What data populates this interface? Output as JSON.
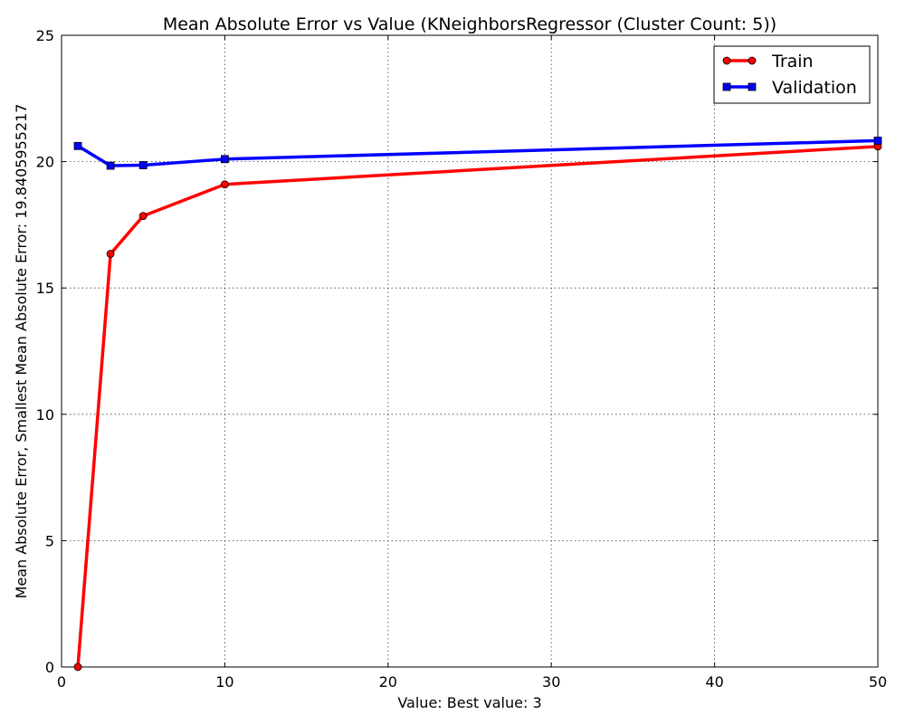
{
  "chart_data": {
    "type": "line",
    "title": "Mean Absolute Error vs Value (KNeighborsRegressor (Cluster Count: 5))",
    "xlabel": "Value: Best value: 3",
    "ylabel": "Mean Absolute Error, Smallest Mean Absolute Error: 19.8405955217",
    "xlim": [
      0,
      50
    ],
    "ylim": [
      0,
      25
    ],
    "xticks": [
      0,
      10,
      20,
      30,
      40,
      50
    ],
    "yticks": [
      0,
      5,
      10,
      15,
      20,
      25
    ],
    "grid": true,
    "legend_position": "top-right",
    "series": [
      {
        "name": "Train",
        "color": "#ff0000",
        "marker": "circle",
        "x": [
          1,
          3,
          5,
          10,
          50
        ],
        "y": [
          0.0,
          16.35,
          17.85,
          19.1,
          20.6
        ]
      },
      {
        "name": "Validation",
        "color": "#0000ff",
        "marker": "square",
        "x": [
          1,
          3,
          5,
          10,
          50
        ],
        "y": [
          20.62,
          19.84,
          19.86,
          20.1,
          20.83
        ]
      }
    ]
  }
}
